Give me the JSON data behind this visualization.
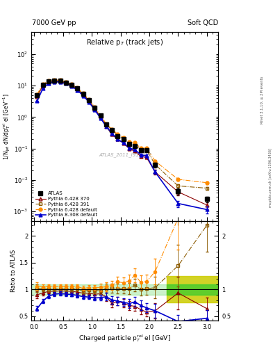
{
  "title_left": "7000 GeV pp",
  "title_right": "Soft QCD",
  "plot_title": "Relative p$_{T}$ (track jets)",
  "ylabel_main": "1/N$_{jet}$ dN/dp$^{rel}_{T}$ el [GeV$^{-1}$]",
  "ylabel_ratio": "Ratio to ATLAS",
  "xlabel": "Charged particle p$^{rel}_{T}$ el [GeV]",
  "right_label_top": "Rivet 3.1.10, ≥ 2M events",
  "right_label_bottom": "mcplots.cern.ch [arXiv:1306.3436]",
  "watermark": "ATLAS_2011_I919017",
  "ylim_main": [
    0.0005,
    500
  ],
  "ylim_ratio": [
    0.42,
    2.28
  ],
  "xlim": [
    -0.05,
    3.2
  ],
  "atlas_x": [
    0.05,
    0.15,
    0.25,
    0.35,
    0.45,
    0.55,
    0.65,
    0.75,
    0.85,
    0.95,
    1.05,
    1.15,
    1.25,
    1.35,
    1.45,
    1.55,
    1.65,
    1.75,
    1.85,
    1.95,
    2.1,
    2.5,
    3.0
  ],
  "atlas_y": [
    5.0,
    10.5,
    13.5,
    14.5,
    14.0,
    12.5,
    10.5,
    8.0,
    5.5,
    3.5,
    2.0,
    1.1,
    0.58,
    0.38,
    0.25,
    0.2,
    0.14,
    0.12,
    0.09,
    0.09,
    0.03,
    0.0045,
    0.0025
  ],
  "atlas_yerr": [
    0.3,
    0.4,
    0.5,
    0.5,
    0.5,
    0.4,
    0.35,
    0.28,
    0.2,
    0.13,
    0.09,
    0.06,
    0.04,
    0.025,
    0.018,
    0.015,
    0.012,
    0.011,
    0.009,
    0.009,
    0.005,
    0.001,
    0.0005
  ],
  "p6_370_x": [
    0.05,
    0.15,
    0.25,
    0.35,
    0.45,
    0.55,
    0.65,
    0.75,
    0.85,
    0.95,
    1.05,
    1.15,
    1.25,
    1.35,
    1.45,
    1.55,
    1.65,
    1.75,
    1.85,
    1.95,
    2.1,
    2.5,
    3.0
  ],
  "p6_370_y": [
    4.5,
    9.8,
    13.0,
    14.0,
    13.6,
    12.1,
    10.1,
    7.6,
    5.1,
    3.25,
    1.82,
    1.01,
    0.5,
    0.28,
    0.195,
    0.148,
    0.098,
    0.082,
    0.056,
    0.052,
    0.018,
    0.0042,
    0.0016
  ],
  "p6_370_yerr": [
    0.15,
    0.25,
    0.3,
    0.3,
    0.3,
    0.25,
    0.22,
    0.18,
    0.14,
    0.09,
    0.06,
    0.04,
    0.028,
    0.018,
    0.013,
    0.01,
    0.008,
    0.007,
    0.006,
    0.005,
    0.003,
    0.001,
    0.0004
  ],
  "p6_391_x": [
    0.05,
    0.15,
    0.25,
    0.35,
    0.45,
    0.55,
    0.65,
    0.75,
    0.85,
    0.95,
    1.05,
    1.15,
    1.25,
    1.35,
    1.45,
    1.55,
    1.65,
    1.75,
    1.85,
    1.95,
    2.1,
    2.5,
    3.0
  ],
  "p6_391_y": [
    5.1,
    10.6,
    13.6,
    14.6,
    14.1,
    12.6,
    10.6,
    8.1,
    5.3,
    3.45,
    1.95,
    1.08,
    0.59,
    0.39,
    0.255,
    0.202,
    0.142,
    0.13,
    0.09,
    0.091,
    0.031,
    0.0065,
    0.0055
  ],
  "p6_391_yerr": [
    0.15,
    0.25,
    0.3,
    0.3,
    0.3,
    0.25,
    0.22,
    0.18,
    0.14,
    0.09,
    0.06,
    0.04,
    0.028,
    0.018,
    0.013,
    0.01,
    0.008,
    0.007,
    0.006,
    0.005,
    0.003,
    0.001,
    0.0006
  ],
  "p6_def_x": [
    0.05,
    0.15,
    0.25,
    0.35,
    0.45,
    0.55,
    0.65,
    0.75,
    0.85,
    0.95,
    1.05,
    1.15,
    1.25,
    1.35,
    1.45,
    1.55,
    1.65,
    1.75,
    1.85,
    1.95,
    2.1,
    2.5,
    3.0
  ],
  "p6_def_y": [
    5.3,
    11.0,
    14.2,
    15.2,
    14.7,
    13.2,
    11.1,
    8.4,
    5.6,
    3.62,
    2.06,
    1.14,
    0.61,
    0.41,
    0.285,
    0.225,
    0.162,
    0.152,
    0.102,
    0.103,
    0.04,
    0.0105,
    0.0082
  ],
  "p6_def_yerr": [
    0.15,
    0.25,
    0.3,
    0.3,
    0.3,
    0.25,
    0.22,
    0.18,
    0.14,
    0.09,
    0.06,
    0.04,
    0.028,
    0.018,
    0.013,
    0.01,
    0.008,
    0.007,
    0.006,
    0.005,
    0.003,
    0.0012,
    0.0008
  ],
  "p8_def_x": [
    0.05,
    0.15,
    0.25,
    0.35,
    0.45,
    0.55,
    0.65,
    0.75,
    0.85,
    0.95,
    1.05,
    1.15,
    1.25,
    1.35,
    1.45,
    1.55,
    1.65,
    1.75,
    1.85,
    1.95,
    2.1,
    2.5,
    3.0
  ],
  "p8_def_y": [
    3.2,
    8.2,
    11.8,
    13.2,
    12.9,
    11.4,
    9.5,
    7.1,
    4.75,
    3.0,
    1.68,
    0.93,
    0.5,
    0.305,
    0.195,
    0.152,
    0.103,
    0.092,
    0.063,
    0.059,
    0.018,
    0.0018,
    0.00115
  ],
  "p8_def_yerr": [
    0.12,
    0.22,
    0.28,
    0.28,
    0.28,
    0.22,
    0.2,
    0.16,
    0.13,
    0.08,
    0.055,
    0.035,
    0.025,
    0.016,
    0.012,
    0.009,
    0.007,
    0.007,
    0.005,
    0.005,
    0.0025,
    0.0004,
    0.0003
  ],
  "band_xstart": 2.3,
  "band_xend": 3.2,
  "color_atlas": "#000000",
  "color_p6_370": "#8B0000",
  "color_p6_391": "#8B5A00",
  "color_p6_def": "#FF8C00",
  "color_p8_def": "#0000CD",
  "color_green": "#33CC33",
  "color_yellow": "#CCCC00"
}
